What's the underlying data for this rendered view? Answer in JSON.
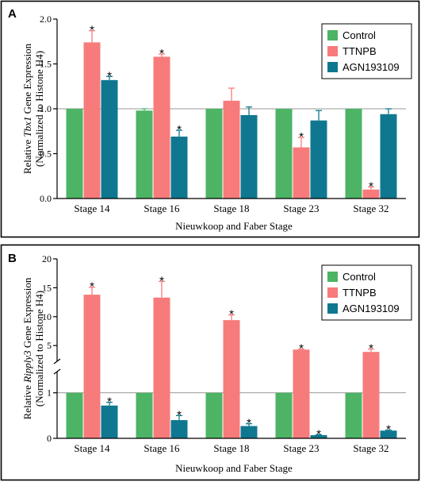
{
  "colors": {
    "Control": "#4cb464",
    "TTNPB": "#f77b7b",
    "AGN193109": "#0f7890",
    "axis": "#000000",
    "refline": "#9a9a9a"
  },
  "chart_data": [
    {
      "panel_label": "A",
      "type": "bar",
      "xlabel": "Nieuwkoop and Faber Stage",
      "ylabel_parts": [
        "Relative ",
        "Tbx1",
        " Gene Expression"
      ],
      "ylabel_line2": "(Normalized to Histone H4)",
      "categories": [
        "Stage 14",
        "Stage 16",
        "Stage 18",
        "Stage 23",
        "Stage 32"
      ],
      "ylim": [
        0,
        2.0
      ],
      "ytick_labels": [
        "0.0",
        "0.5",
        "1.0",
        "1.5",
        "2.0"
      ],
      "yticks": [
        0,
        0.5,
        1.0,
        1.5,
        2.0
      ],
      "reference_line": 1.0,
      "legend_position": "top-right",
      "series": [
        {
          "name": "Control",
          "values": [
            1.0,
            0.98,
            1.0,
            1.0,
            1.0
          ],
          "errors": [
            0.0,
            0.02,
            0.0,
            0.0,
            0.0
          ],
          "significant": [
            false,
            false,
            false,
            false,
            false
          ]
        },
        {
          "name": "TTNPB",
          "values": [
            1.74,
            1.58,
            1.09,
            0.57,
            0.1
          ],
          "errors": [
            0.13,
            0.03,
            0.14,
            0.11,
            0.03
          ],
          "significant": [
            true,
            true,
            false,
            true,
            true
          ]
        },
        {
          "name": "AGN193109",
          "values": [
            1.32,
            0.69,
            0.93,
            0.87,
            0.94
          ],
          "errors": [
            0.04,
            0.07,
            0.09,
            0.11,
            0.06
          ],
          "significant": [
            true,
            true,
            false,
            false,
            false
          ]
        }
      ],
      "annotation": "*"
    },
    {
      "panel_label": "B",
      "type": "bar",
      "xlabel": "Nieuwkoop and Faber Stage",
      "ylabel_parts": [
        "Relative ",
        "Ripply3",
        " Gene Expression"
      ],
      "ylabel_line2": "(Normalized to Histone H4)",
      "categories": [
        "Stage 14",
        "Stage 16",
        "Stage 18",
        "Stage 23",
        "Stage 32"
      ],
      "axis_break": true,
      "lower_ylim": [
        0,
        1.5
      ],
      "upper_ylim": [
        2,
        20
      ],
      "ytick_labels": [
        "0",
        "1",
        "5",
        "10",
        "15",
        "20"
      ],
      "yticks": [
        0,
        1,
        5,
        10,
        15,
        20
      ],
      "reference_line": 1.0,
      "legend_position": "top-right",
      "series": [
        {
          "name": "Control",
          "values": [
            1.0,
            1.0,
            1.0,
            1.0,
            1.0
          ],
          "errors": [
            0,
            0,
            0,
            0,
            0
          ],
          "significant": [
            false,
            false,
            false,
            false,
            false
          ]
        },
        {
          "name": "TTNPB",
          "values": [
            13.8,
            13.3,
            9.4,
            4.3,
            3.9
          ],
          "errors": [
            1.3,
            2.8,
            0.9,
            0.1,
            0.5
          ],
          "significant": [
            true,
            true,
            true,
            true,
            true
          ]
        },
        {
          "name": "AGN193109",
          "values": [
            0.72,
            0.4,
            0.27,
            0.07,
            0.17
          ],
          "errors": [
            0.07,
            0.1,
            0.05,
            0.01,
            0.01
          ],
          "significant": [
            true,
            true,
            true,
            true,
            true
          ]
        }
      ],
      "annotation": "*"
    }
  ]
}
